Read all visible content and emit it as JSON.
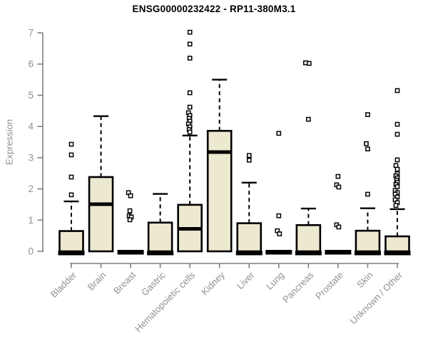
{
  "title": "ENSG00000232422 - RP11-380M3.1",
  "y_axis_label": "Expression",
  "chart_data": {
    "type": "boxplot",
    "title": "ENSG00000232422 - RP11-380M3.1",
    "ylabel": "Expression",
    "xlabel": "",
    "ylim": [
      0,
      7
    ],
    "y_ticks": [
      0,
      1,
      2,
      3,
      4,
      5,
      6,
      7
    ],
    "grid": false,
    "legend": "none",
    "categories": [
      "Bladder",
      "Brain",
      "Breast",
      "Gastric",
      "Hematopoietic cells",
      "Kidney",
      "Liver",
      "Lung",
      "Pancreas",
      "Prostate",
      "Skin",
      "Unknown / Other"
    ],
    "series": [
      {
        "name": "Bladder",
        "q1": 0,
        "median": 0.02,
        "q3": 0.65,
        "whisker_low": 0,
        "whisker_high": 1.6,
        "outliers": [
          {
            "v": 3.43
          },
          {
            "v": 3.09
          },
          {
            "v": 2.38
          },
          {
            "v": 1.81
          }
        ]
      },
      {
        "name": "Brain",
        "q1": 0,
        "median": 1.51,
        "q3": 2.38,
        "whisker_low": 0,
        "whisker_high": 4.33,
        "outliers": []
      },
      {
        "name": "Breast",
        "q1": 0,
        "median": 0.02,
        "q3": 0.03,
        "whisker_low": 0,
        "whisker_high": 0.03,
        "outliers": [
          {
            "v": 1.88,
            "dx": -3
          },
          {
            "v": 1.78
          },
          {
            "v": 1.3,
            "dx": -1
          },
          {
            "v": 1.14,
            "dx": -2
          },
          {
            "v": 1.1,
            "dx": 1
          },
          {
            "v": 1.01,
            "dx": -1
          }
        ]
      },
      {
        "name": "Gastric",
        "q1": 0,
        "median": 0.02,
        "q3": 0.92,
        "whisker_low": 0,
        "whisker_high": 1.84,
        "outliers": []
      },
      {
        "name": "Hematopoietic cells",
        "q1": 0,
        "median": 0.72,
        "q3": 1.49,
        "whisker_low": 0,
        "whisker_high": 3.71,
        "outliers": [
          {
            "v": 7.02
          },
          {
            "v": 6.64
          },
          {
            "v": 6.19
          },
          {
            "v": 5.08
          },
          {
            "v": 4.62
          },
          {
            "v": 4.44,
            "dx": -2
          },
          {
            "v": 4.35
          },
          {
            "v": 4.26,
            "dx": -1
          },
          {
            "v": 4.17
          },
          {
            "v": 4.08,
            "dx": -2
          },
          {
            "v": 3.99
          },
          {
            "v": 3.9,
            "dx": -1
          },
          {
            "v": 3.82
          }
        ]
      },
      {
        "name": "Kidney",
        "q1": 0,
        "median": 3.18,
        "q3": 3.86,
        "whisker_low": 0,
        "whisker_high": 5.5,
        "outliers": []
      },
      {
        "name": "Liver",
        "q1": 0,
        "median": 0.02,
        "q3": 0.9,
        "whisker_low": 0,
        "whisker_high": 2.2,
        "outliers": [
          {
            "v": 3.07
          },
          {
            "v": 2.92
          }
        ]
      },
      {
        "name": "Lung",
        "q1": 0,
        "median": 0.02,
        "q3": 0.03,
        "whisker_low": 0,
        "whisker_high": 0.03,
        "outliers": [
          {
            "v": 3.78
          },
          {
            "v": 1.14
          },
          {
            "v": 0.66,
            "dx": -2
          },
          {
            "v": 0.56,
            "dx": 1
          }
        ]
      },
      {
        "name": "Pancreas",
        "q1": 0,
        "median": 0.02,
        "q3": 0.84,
        "whisker_low": 0,
        "whisker_high": 1.37,
        "outliers": [
          {
            "v": 6.04,
            "dx": -4
          },
          {
            "v": 6.02,
            "dx": 1
          },
          {
            "v": 4.23
          }
        ]
      },
      {
        "name": "Prostate",
        "q1": 0,
        "median": 0.02,
        "q3": 0.03,
        "whisker_low": 0,
        "whisker_high": 0.03,
        "outliers": [
          {
            "v": 2.4
          },
          {
            "v": 2.13,
            "dx": -2
          },
          {
            "v": 2.06,
            "dx": 1
          },
          {
            "v": 0.85,
            "dx": -2
          },
          {
            "v": 0.78,
            "dx": 1
          }
        ]
      },
      {
        "name": "Skin",
        "q1": 0,
        "median": 0.02,
        "q3": 0.66,
        "whisker_low": 0,
        "whisker_high": 1.38,
        "outliers": [
          {
            "v": 4.38
          },
          {
            "v": 3.45,
            "dx": -2
          },
          {
            "v": 3.28
          },
          {
            "v": 1.83
          }
        ]
      },
      {
        "name": "Unknown / Other",
        "q1": 0,
        "median": 0.02,
        "q3": 0.48,
        "whisker_low": 0,
        "whisker_high": 1.35,
        "outliers": [
          {
            "v": 5.15
          },
          {
            "v": 4.07
          },
          {
            "v": 3.75
          },
          {
            "v": 2.93
          },
          {
            "v": 2.75,
            "dx": -2
          },
          {
            "v": 2.63
          },
          {
            "v": 2.49
          },
          {
            "v": 2.42,
            "dx": -2
          },
          {
            "v": 2.35
          },
          {
            "v": 2.28,
            "dx": -1
          },
          {
            "v": 2.21
          },
          {
            "v": 2.14,
            "dx": -2
          },
          {
            "v": 2.07
          },
          {
            "v": 1.95,
            "dx": -3
          },
          {
            "v": 1.88
          },
          {
            "v": 1.83,
            "dx": -3
          },
          {
            "v": 1.74
          },
          {
            "v": 1.65,
            "dx": -3
          },
          {
            "v": 1.56
          },
          {
            "v": 1.47,
            "dx": -2
          }
        ]
      }
    ],
    "colors": {
      "box_fill": "#EDE8D0",
      "box_stroke": "#000000",
      "median": "#000000",
      "whisker": "#000000",
      "outlier_stroke": "#000000",
      "outlier_fill": "#FFFFFF",
      "axis": "#808080",
      "tick_label": "#909090",
      "title": "#000000",
      "background": "#FFFFFF"
    }
  }
}
